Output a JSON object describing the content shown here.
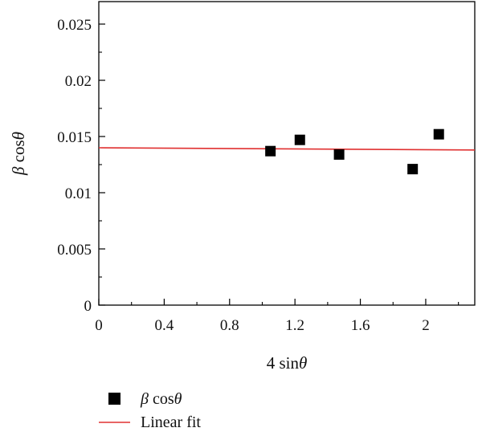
{
  "chart_data": {
    "type": "scatter",
    "title": "",
    "xlabel": {
      "prefix": "4 sin",
      "symbol": "θ"
    },
    "ylabel": {
      "beta": "β",
      "cos": " cos",
      "symbol": "θ"
    },
    "xlim": [
      0,
      2.3
    ],
    "ylim": [
      0,
      0.027
    ],
    "xticks": [
      0,
      0.4,
      0.8,
      1.2,
      1.6,
      2
    ],
    "xtick_labels": [
      "0",
      "0.4",
      "0.8",
      "1.2",
      "1.6",
      "2"
    ],
    "yticks": [
      0,
      0.005,
      0.01,
      0.015,
      0.02,
      0.025
    ],
    "ytick_labels": [
      "0",
      "0.005",
      "0.01",
      "0.015",
      "0.02",
      "0.025"
    ],
    "grid": false,
    "legend_position": "bottom-left, below plot",
    "series": [
      {
        "name": "β cosθ",
        "kind": "scatter",
        "marker": "square",
        "color": "#000000",
        "x": [
          1.05,
          1.23,
          1.47,
          1.92,
          2.08
        ],
        "y": [
          0.0137,
          0.0147,
          0.0134,
          0.0121,
          0.0152
        ]
      },
      {
        "name": "Linear fit",
        "kind": "line",
        "color": "#e03030",
        "x": [
          0,
          2.3
        ],
        "y": [
          0.014,
          0.0138
        ]
      }
    ],
    "legend": {
      "scatter": {
        "beta": "β",
        "cos": " cos",
        "symbol": "θ"
      },
      "line": "Linear fit"
    }
  }
}
